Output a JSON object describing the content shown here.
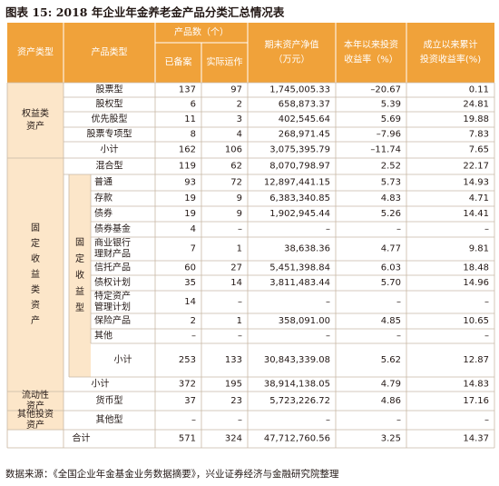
{
  "title": "图表 15: 2018 年企业年金养老金产品分类汇总情况表",
  "source": "数据来源：《全国企业年金基金业务数据摘要》，兴业证券经济与金融研究院整理",
  "colors": {
    "header_bg": "#f0a23a",
    "header_text": "#ffffff",
    "band": "#fce6c9",
    "border": "#c9b9a6",
    "text": "#231815"
  },
  "header": {
    "asset_type": "资产类型",
    "product_type": "产品类型",
    "count_group": "产品数（个）",
    "filed": "已备案",
    "operating": "实际运作",
    "nav_line1": "期末资产净值",
    "nav_line2": "（万元）",
    "ytd_line1": "本年以来投资",
    "ytd_line2": "收益率（%）",
    "cum_line1": "成立以来累计",
    "cum_line2": "投资收益率(%)"
  },
  "groups": {
    "equity_line1": "权益类",
    "equity_line2": "资产",
    "fixed": "固定收益类资产",
    "fixed_sub": "固定收益型",
    "liquidity_line1": "流动性",
    "liquidity_line2": "资产",
    "other_line1": "其他投资",
    "other_line2": "资产"
  },
  "rows": [
    {
      "name": "股票型",
      "filed": "137",
      "operating": "97",
      "nav": "1,745,005.33",
      "ytd": "–20.67",
      "cum": "0.11"
    },
    {
      "name": "股权型",
      "filed": "6",
      "operating": "2",
      "nav": "658,873.37",
      "ytd": "5.39",
      "cum": "24.81"
    },
    {
      "name": "优先股型",
      "filed": "11",
      "operating": "3",
      "nav": "402,545.64",
      "ytd": "5.69",
      "cum": "19.88"
    },
    {
      "name": "股票专项型",
      "filed": "8",
      "operating": "4",
      "nav": "268,971.45",
      "ytd": "–7.96",
      "cum": "7.83"
    },
    {
      "name": "小计",
      "filed": "162",
      "operating": "106",
      "nav": "3,075,395.79",
      "ytd": "–11.74",
      "cum": "7.65"
    },
    {
      "name": "混合型",
      "filed": "119",
      "operating": "62",
      "nav": "8,070,798.97",
      "ytd": "2.52",
      "cum": "22.17"
    },
    {
      "name": "普通",
      "filed": "93",
      "operating": "72",
      "nav": "12,897,441.15",
      "ytd": "5.73",
      "cum": "14.93"
    },
    {
      "name": "存款",
      "filed": "19",
      "operating": "9",
      "nav": "6,383,340.85",
      "ytd": "4.83",
      "cum": "4.71"
    },
    {
      "name": "债券",
      "filed": "19",
      "operating": "9",
      "nav": "1,902,945.44",
      "ytd": "5.26",
      "cum": "14.41"
    },
    {
      "name": "债券基金",
      "filed": "4",
      "operating": "–",
      "nav": "–",
      "ytd": "–",
      "cum": "–"
    },
    {
      "name_line1": "商业银行",
      "name_line2": "理财产品",
      "filed": "7",
      "operating": "1",
      "nav": "38,638.36",
      "ytd": "4.77",
      "cum": "9.81"
    },
    {
      "name": "信托产品",
      "filed": "60",
      "operating": "27",
      "nav": "5,451,398.84",
      "ytd": "6.03",
      "cum": "18.48"
    },
    {
      "name": "债权计划",
      "filed": "35",
      "operating": "14",
      "nav": "3,811,483.44",
      "ytd": "5.70",
      "cum": "14.96"
    },
    {
      "name_line1": "特定资产",
      "name_line2": "管理计划",
      "filed": "14",
      "operating": "–",
      "nav": "–",
      "ytd": "–",
      "cum": "–"
    },
    {
      "name": "保险产品",
      "filed": "2",
      "operating": "1",
      "nav": "358,091.00",
      "ytd": "4.85",
      "cum": "10.65"
    },
    {
      "name": "其他",
      "filed": "–",
      "operating": "–",
      "nav": "–",
      "ytd": "–",
      "cum": "–"
    },
    {
      "name": "小计",
      "filed": "253",
      "operating": "133",
      "nav": "30,843,339.08",
      "ytd": "5.62",
      "cum": "12.87"
    },
    {
      "name": "小计",
      "filed": "372",
      "operating": "195",
      "nav": "38,914,138.05",
      "ytd": "4.79",
      "cum": "14.83"
    },
    {
      "name": "货币型",
      "filed": "37",
      "operating": "23",
      "nav": "5,723,226.72",
      "ytd": "4.86",
      "cum": "17.16"
    },
    {
      "name": "其他型",
      "filed": "–",
      "operating": "–",
      "nav": "–",
      "ytd": "–",
      "cum": "–"
    },
    {
      "name": "合计",
      "filed": "571",
      "operating": "324",
      "nav": "47,712,760.56",
      "ytd": "3.25",
      "cum": "14.37"
    }
  ]
}
